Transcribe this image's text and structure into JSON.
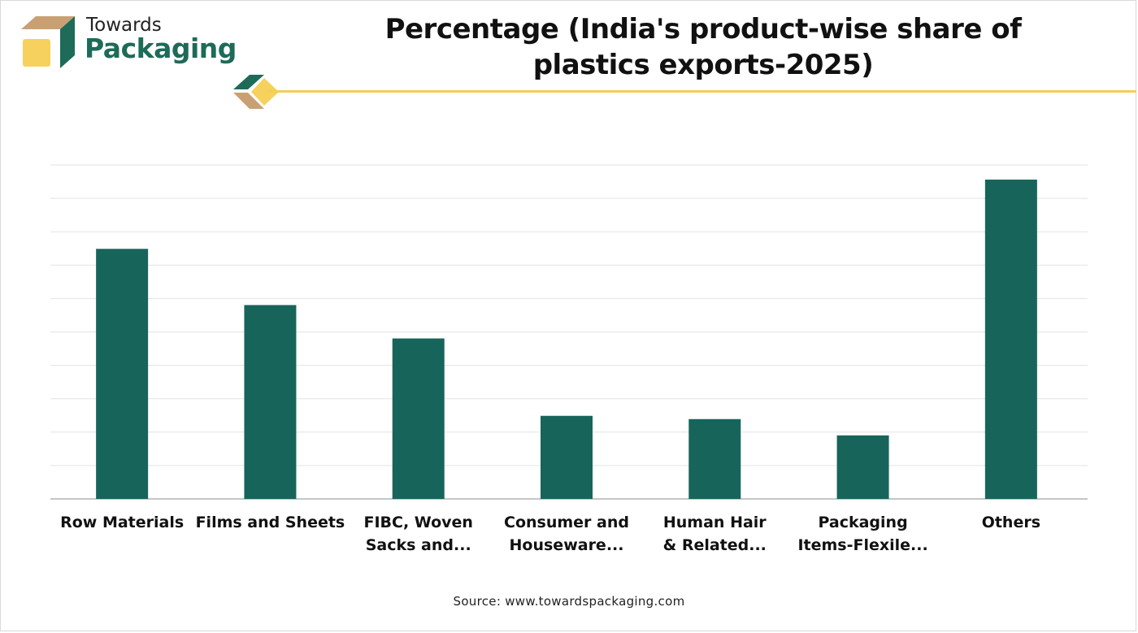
{
  "brand": {
    "line1": "Towards",
    "line2": "Packaging"
  },
  "colors": {
    "bar": "#17655a",
    "accent": "#f3cf55",
    "brand_green": "#1d6b58",
    "brand_tan": "#c9a074"
  },
  "chart_data": {
    "type": "bar",
    "title": "Percentage (India's product-wise share of plastics exports-2025)",
    "xlabel": "",
    "ylabel": "",
    "categories": [
      [
        "Row Materials"
      ],
      [
        "Films and Sheets"
      ],
      [
        "FIBC, Woven",
        "Sacks and..."
      ],
      [
        "Consumer and",
        "Houseware..."
      ],
      [
        "Human Hair",
        "& Related..."
      ],
      [
        "Packaging",
        "Items-Flexile..."
      ],
      [
        "Others"
      ]
    ],
    "values": [
      30.7,
      23.8,
      19.7,
      10.2,
      9.8,
      7.8,
      39.2
    ],
    "ylim": [
      0,
      41
    ],
    "grid": true,
    "legend": "none"
  },
  "source": "Source: www.towardspackaging.com"
}
